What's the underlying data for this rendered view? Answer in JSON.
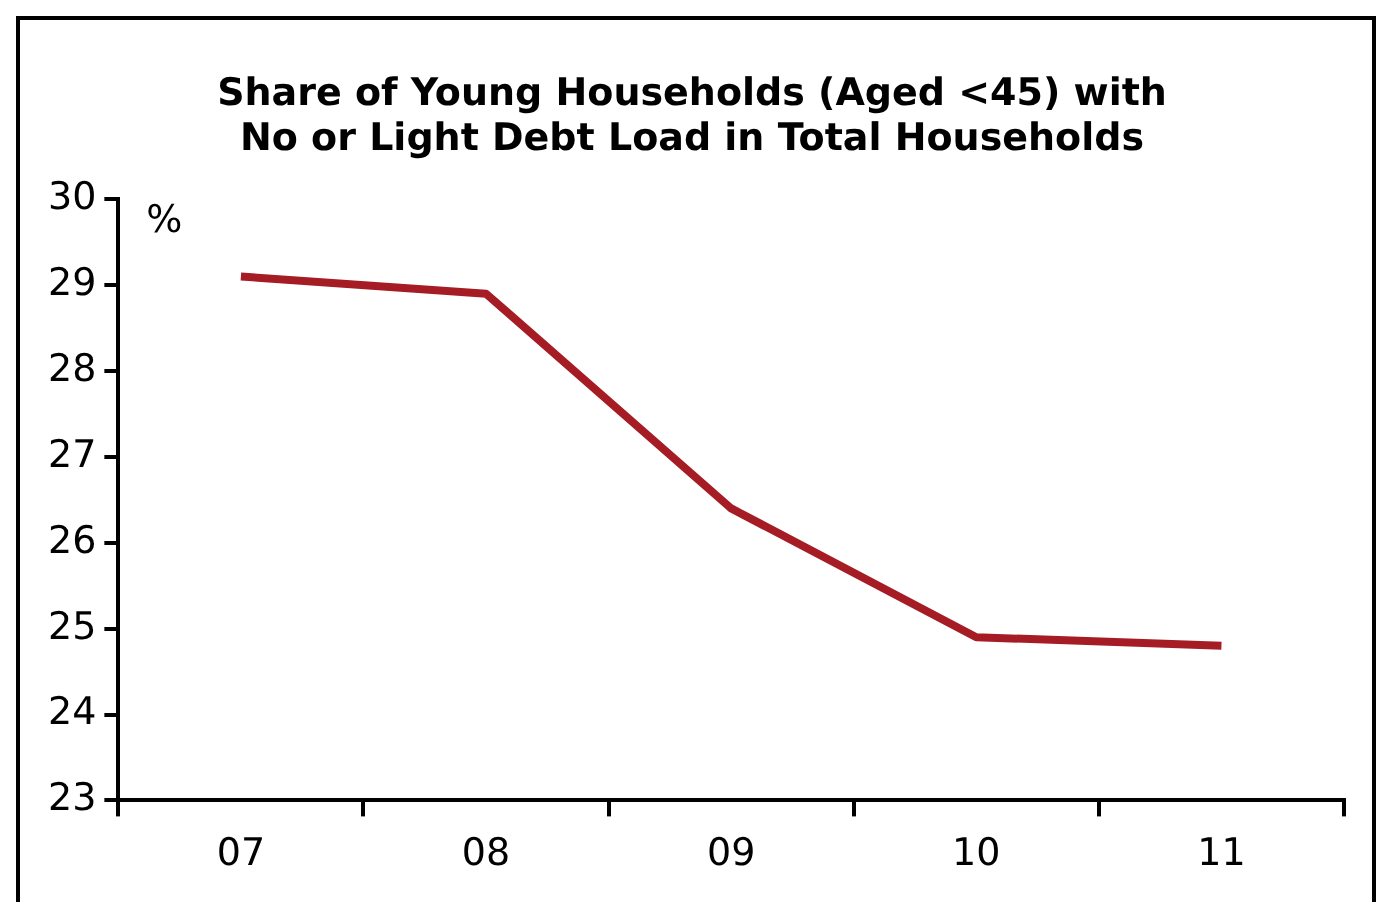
{
  "chart_data": {
    "type": "line",
    "title": "Share of Young Households (Aged <45) with\nNo or Light Debt Load in Total Households",
    "ylabel": "%",
    "categories": [
      "07",
      "08",
      "09",
      "10",
      "11"
    ],
    "series": [
      {
        "color": "#a51c24",
        "values": [
          29.1,
          28.9,
          26.4,
          24.9,
          24.8
        ]
      }
    ],
    "ylim": [
      23,
      30
    ],
    "yticks": [
      23,
      24,
      25,
      26,
      27,
      28,
      29,
      30
    ],
    "grid": false,
    "legend": false,
    "marker": "none",
    "line_style": "solid"
  }
}
